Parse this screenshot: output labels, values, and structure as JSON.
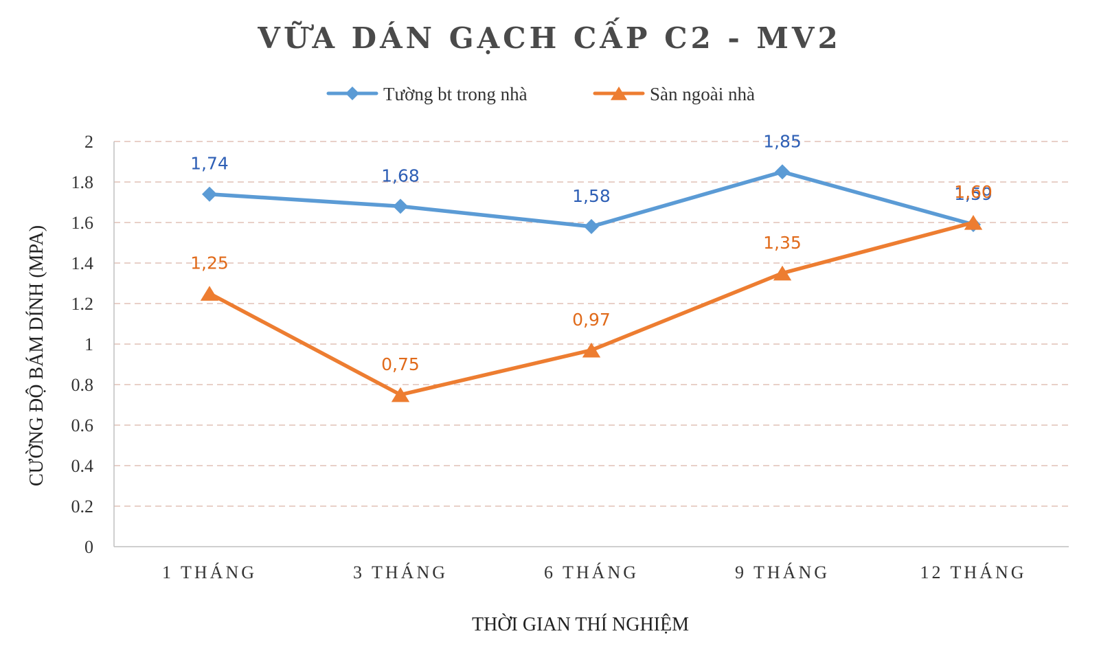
{
  "chart_data": {
    "type": "line",
    "title": "VỮA DÁN GẠCH CẤP C2 - MV2",
    "xlabel": "THỜI GIAN THÍ NGHIỆM",
    "ylabel": "CƯỜNG ĐỘ BÁM DÍNH (MPA)",
    "categories": [
      "1 THÁNG",
      "3 THÁNG",
      "6 THÁNG",
      "9 THÁNG",
      "12 THÁNG"
    ],
    "ylim": [
      0,
      2
    ],
    "yticks": [
      "0",
      "0.2",
      "0.4",
      "0.6",
      "0.8",
      "1",
      "1.2",
      "1.4",
      "1.6",
      "1.8",
      "2"
    ],
    "grid": true,
    "legend_position": "top",
    "series": [
      {
        "name": "Tường bt trong nhà",
        "values": [
          1.74,
          1.68,
          1.58,
          1.85,
          1.59
        ],
        "labels": [
          "1,74",
          "1,68",
          "1,58",
          "1,85",
          "1,59"
        ],
        "color": "#5b9bd5",
        "label_color": "#2e5fb5",
        "marker": "diamond"
      },
      {
        "name": "Sàn ngoài nhà",
        "values": [
          1.25,
          0.75,
          0.97,
          1.35,
          1.6
        ],
        "labels": [
          "1,25",
          "0,75",
          "0,97",
          "1,35",
          "1,60"
        ],
        "color": "#ed7d31",
        "label_color": "#e06a1a",
        "marker": "triangle"
      }
    ]
  }
}
